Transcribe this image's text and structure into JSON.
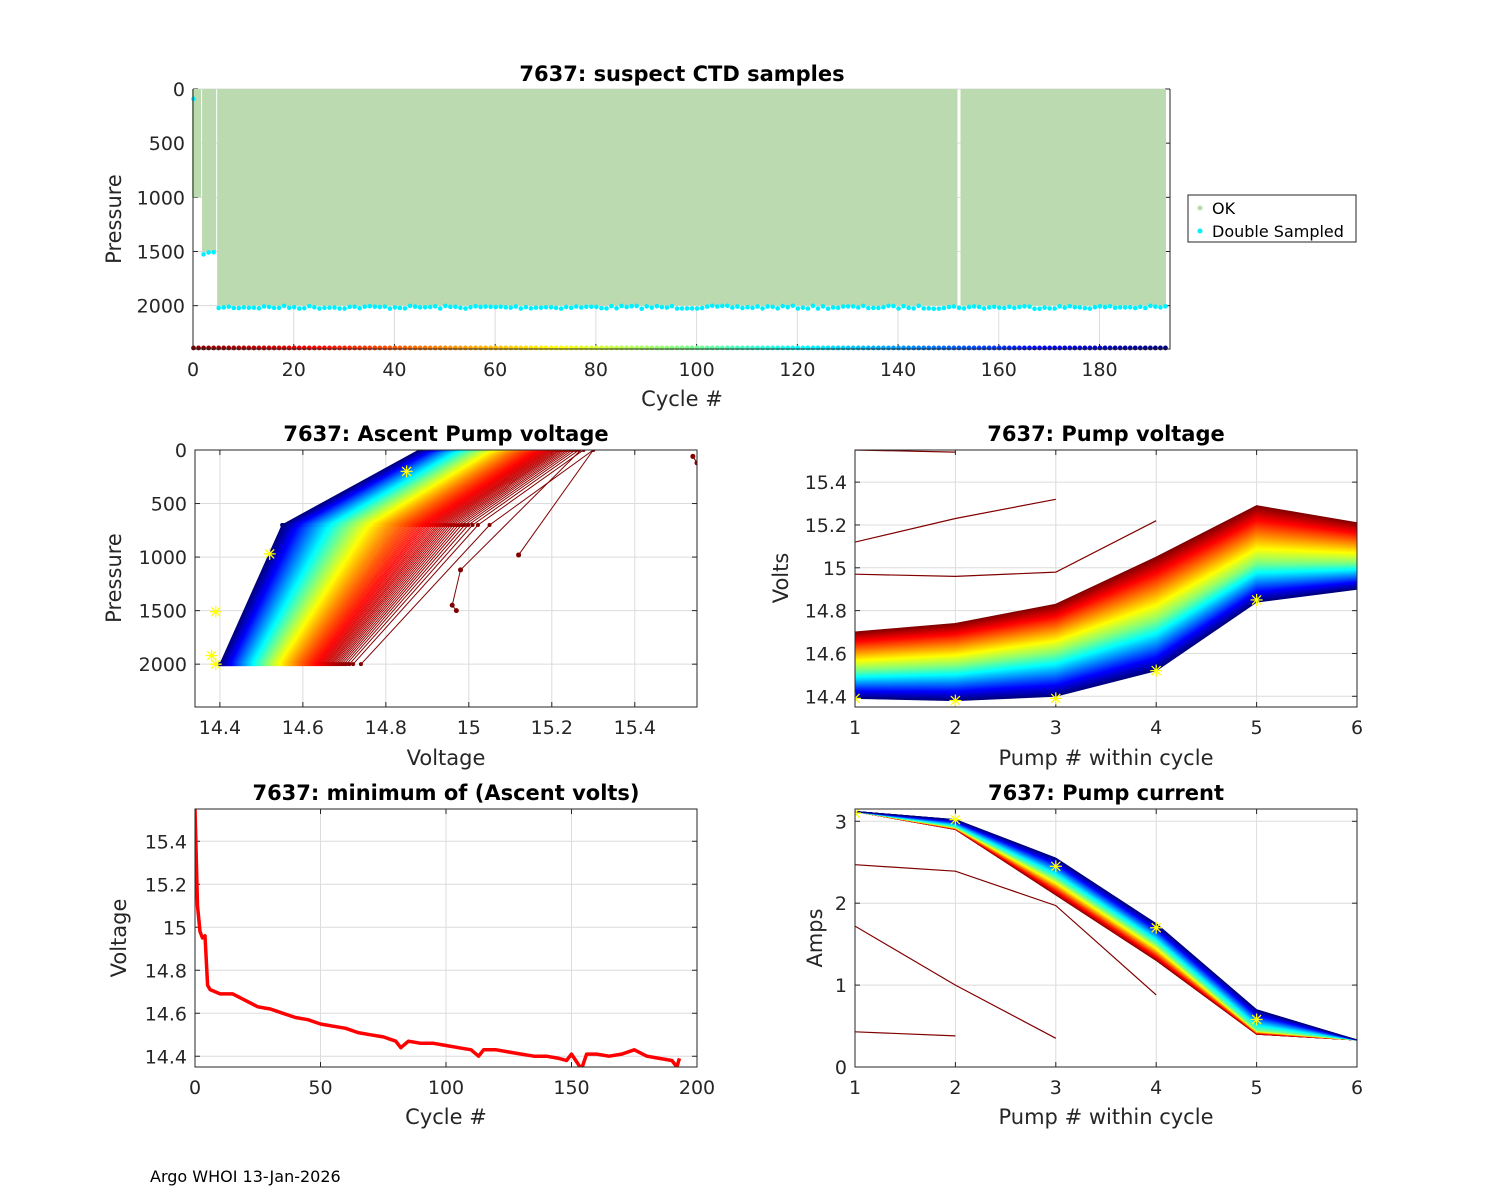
{
  "footer": "Argo WHOI 13-Jan-2026",
  "chart_data": [
    {
      "id": "suspect",
      "type": "scatter",
      "title": "7637: suspect CTD samples",
      "xlabel": "Cycle #",
      "ylabel": "Pressure",
      "xlim": [
        0,
        194
      ],
      "ylim": [
        2400,
        0
      ],
      "xticks": [
        0,
        20,
        40,
        60,
        80,
        100,
        120,
        140,
        160,
        180
      ],
      "yticks": [
        0,
        500,
        1000,
        1500,
        2000
      ],
      "grid": true,
      "legend": {
        "placement": "outside-right",
        "entries": [
          {
            "label": "OK",
            "color": "#bcdab0"
          },
          {
            "label": "Double Sampled",
            "color": "#00f0ff"
          }
        ]
      },
      "ok_region": {
        "x_range": [
          0,
          193
        ],
        "p_range": [
          0,
          2000
        ],
        "gap_cycle": 152,
        "shallow_cycles": [
          [
            0,
            1,
            1000
          ],
          [
            2,
            4,
            1500
          ]
        ]
      },
      "double_sampled": [
        {
          "cycles": [
            0,
            0
          ],
          "pressure": 100
        },
        {
          "cycles": [
            2,
            4
          ],
          "pressure": 1510
        },
        {
          "cycles": [
            5,
            193
          ],
          "pressure": 2010
        }
      ],
      "cycle_marker_row": {
        "pressure": 2390,
        "colormap": "jet-reversed",
        "cycles": [
          0,
          193
        ]
      }
    },
    {
      "id": "ascent",
      "type": "line",
      "title": "7637: Ascent Pump voltage",
      "xlabel": "Voltage",
      "ylabel": "Pressure",
      "xlim": [
        14.34,
        15.55
      ],
      "ylim": [
        2400,
        0
      ],
      "xticks": [
        14.4,
        14.6,
        14.8,
        15,
        15.2,
        15.4
      ],
      "yticks": [
        0,
        500,
        1000,
        1500,
        2000
      ],
      "grid": true,
      "colormap": "jet-reversed (early cycles dark red, late cycles dark blue)",
      "profile_envelope": {
        "early": [
          [
            15.3,
            0
          ],
          [
            15.05,
            700
          ],
          [
            14.74,
            2000
          ]
        ],
        "late": [
          [
            14.88,
            0
          ],
          [
            14.55,
            850
          ],
          [
            14.4,
            2000
          ]
        ]
      },
      "outliers": [
        [
          15.54,
          60
        ],
        [
          15.55,
          120
        ],
        [
          14.96,
          1450
        ],
        [
          14.97,
          1500
        ],
        [
          14.98,
          1120
        ],
        [
          15.12,
          980
        ]
      ],
      "highlight_points": [
        [
          14.85,
          200
        ],
        [
          14.52,
          970
        ],
        [
          14.39,
          1510
        ],
        [
          14.38,
          1920
        ],
        [
          14.39,
          2000
        ]
      ]
    },
    {
      "id": "pumpv",
      "type": "line",
      "title": "7637: Pump voltage",
      "xlabel": "Pump # within cycle",
      "ylabel": "Volts",
      "xlim": [
        1,
        6
      ],
      "ylim": [
        14.35,
        15.55
      ],
      "xticks": [
        1,
        2,
        3,
        4,
        5,
        6
      ],
      "yticks": [
        14.4,
        14.6,
        14.8,
        15,
        15.2,
        15.4
      ],
      "grid": true,
      "colormap": "jet-reversed",
      "series_samples": [
        {
          "name": "early-cycle-1",
          "values": [
            15.55,
            15.54
          ]
        },
        {
          "name": "early-cycle-2",
          "values": [
            15.12,
            15.23,
            15.32
          ]
        },
        {
          "name": "early-cycle-3",
          "values": [
            14.97,
            14.96,
            14.98,
            15.22
          ]
        },
        {
          "name": "early",
          "values": [
            14.7,
            14.74,
            14.83,
            15.05,
            15.29,
            15.21
          ]
        },
        {
          "name": "mid",
          "values": [
            14.52,
            14.54,
            14.6,
            14.75,
            15.02,
            15.02
          ]
        },
        {
          "name": "late",
          "values": [
            14.39,
            14.38,
            14.4,
            14.52,
            14.84,
            14.9
          ]
        }
      ],
      "highlight_points": [
        [
          1,
          14.39
        ],
        [
          2,
          14.38
        ],
        [
          3,
          14.39
        ],
        [
          4,
          14.52
        ],
        [
          5,
          14.85
        ]
      ]
    },
    {
      "id": "minv",
      "type": "line",
      "title": "7637: minimum of (Ascent volts)",
      "xlabel": "Cycle #",
      "ylabel": "Voltage",
      "xlim": [
        0,
        200
      ],
      "ylim": [
        14.35,
        15.55
      ],
      "xticks": [
        0,
        50,
        100,
        150,
        200
      ],
      "yticks": [
        14.4,
        14.6,
        14.8,
        15,
        15.2,
        15.4
      ],
      "grid": true,
      "color": "#ff0000",
      "x": [
        0,
        1,
        2,
        3,
        4,
        5,
        6,
        10,
        15,
        20,
        25,
        30,
        35,
        40,
        45,
        50,
        55,
        60,
        65,
        70,
        75,
        80,
        82,
        85,
        90,
        95,
        100,
        105,
        110,
        113,
        115,
        120,
        125,
        130,
        135,
        140,
        145,
        148,
        150,
        154,
        156,
        160,
        165,
        170,
        175,
        180,
        185,
        190,
        192,
        193
      ],
      "y": [
        15.55,
        15.1,
        14.98,
        14.95,
        14.96,
        14.73,
        14.71,
        14.69,
        14.69,
        14.66,
        14.63,
        14.62,
        14.6,
        14.58,
        14.57,
        14.55,
        14.54,
        14.53,
        14.51,
        14.5,
        14.49,
        14.47,
        14.44,
        14.47,
        14.46,
        14.46,
        14.45,
        14.44,
        14.43,
        14.4,
        14.43,
        14.43,
        14.42,
        14.41,
        14.4,
        14.4,
        14.39,
        14.38,
        14.41,
        14.34,
        14.41,
        14.41,
        14.4,
        14.41,
        14.43,
        14.4,
        14.39,
        14.38,
        14.35,
        14.39
      ]
    },
    {
      "id": "pumpc",
      "type": "line",
      "title": "7637: Pump current",
      "xlabel": "Pump # within cycle",
      "ylabel": "Amps",
      "xlim": [
        1,
        6
      ],
      "ylim": [
        0,
        3.15
      ],
      "xticks": [
        1,
        2,
        3,
        4,
        5,
        6
      ],
      "yticks": [
        0,
        1,
        2,
        3
      ],
      "grid": true,
      "colormap": "jet-reversed",
      "series_samples": [
        {
          "name": "early-cycle-1",
          "values": [
            0.43,
            0.38
          ]
        },
        {
          "name": "early-cycle-2",
          "values": [
            1.72,
            1.0,
            0.35
          ]
        },
        {
          "name": "early-cycle-3",
          "values": [
            2.47,
            2.39,
            1.97,
            0.88
          ]
        },
        {
          "name": "early",
          "values": [
            3.12,
            2.9,
            2.1,
            1.3,
            0.4,
            0.33
          ]
        },
        {
          "name": "mid",
          "values": [
            3.12,
            2.93,
            2.3,
            1.5,
            0.45,
            0.33
          ]
        },
        {
          "name": "late",
          "values": [
            3.12,
            3.02,
            2.55,
            1.75,
            0.7,
            0.33
          ]
        }
      ],
      "highlight_points": [
        [
          1,
          3.1
        ],
        [
          2,
          3.02
        ],
        [
          3,
          2.45
        ],
        [
          4,
          1.7
        ],
        [
          5,
          0.58
        ]
      ]
    }
  ]
}
